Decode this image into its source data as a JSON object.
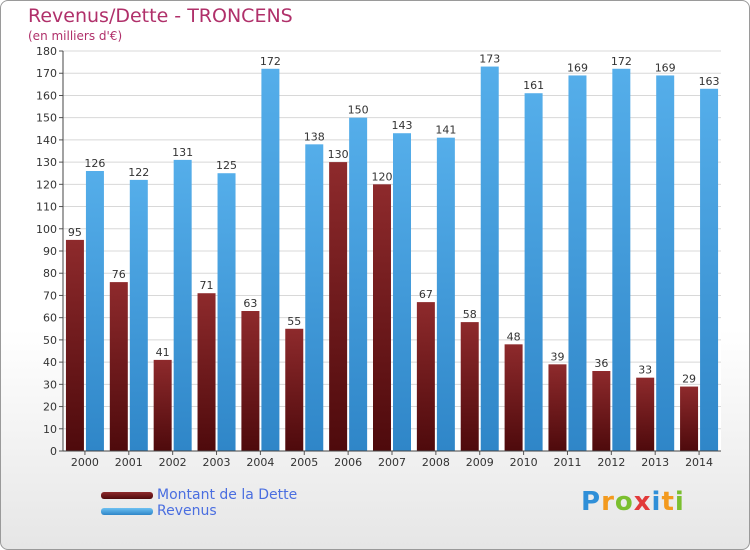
{
  "header": {
    "title": "Revenus/Dette - TRONCENS",
    "subtitle": "(en milliers d'€)"
  },
  "brand": {
    "letters": [
      "P",
      "r",
      "o",
      "x",
      "i",
      "t",
      "i"
    ],
    "colors": [
      "#2f8fd8",
      "#f39a1e",
      "#7bbf2f",
      "#e23a3a",
      "#2f8fd8",
      "#f39a1e",
      "#7bbf2f"
    ]
  },
  "chart_data": {
    "type": "bar",
    "categories": [
      "2000",
      "2001",
      "2002",
      "2003",
      "2004",
      "2005",
      "2006",
      "2007",
      "2008",
      "2009",
      "2010",
      "2011",
      "2012",
      "2013",
      "2014"
    ],
    "series": [
      {
        "name": "Montant de la Dette",
        "color": "#8b1e22",
        "values": [
          95,
          76,
          41,
          71,
          63,
          55,
          130,
          120,
          67,
          58,
          48,
          39,
          36,
          33,
          29
        ]
      },
      {
        "name": "Revenus",
        "color": "#4aa3e6",
        "values": [
          126,
          122,
          131,
          125,
          172,
          138,
          150,
          143,
          141,
          173,
          161,
          169,
          172,
          169,
          163
        ]
      }
    ],
    "yticks": [
      0,
      10,
      20,
      30,
      40,
      50,
      60,
      70,
      80,
      90,
      100,
      110,
      120,
      130,
      140,
      150,
      160,
      170,
      180
    ],
    "ylim": [
      0,
      180
    ],
    "grid": true,
    "legend_position": "bottom-left"
  }
}
